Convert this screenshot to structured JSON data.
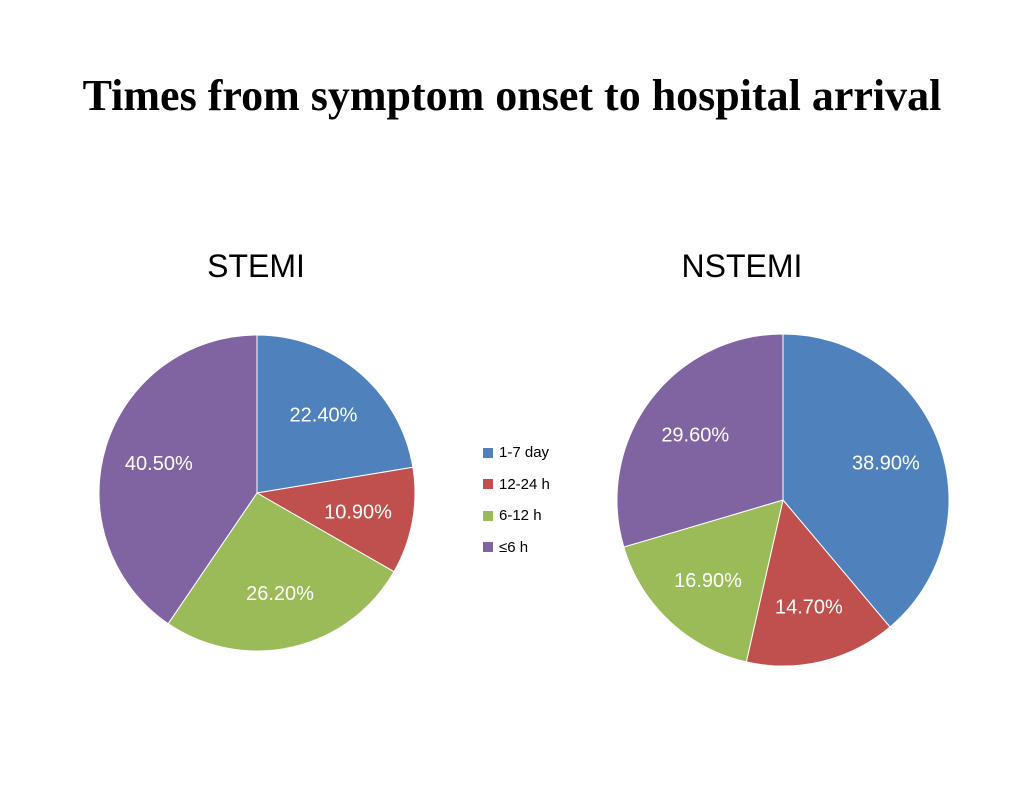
{
  "title": "Times from symptom onset to hospital arrival",
  "colors": {
    "1-7 day": "#4f81bd",
    "12-24 h": "#c0504d",
    "6-12 h": "#9bbb59",
    "≤6 h": "#8064a2"
  },
  "legend": [
    "1-7 day",
    "12-24 h",
    "6-12 h",
    "≤6 h"
  ],
  "chart_data": [
    {
      "type": "pie",
      "title": "STEMI",
      "categories": [
        "1-7 day",
        "12-24 h",
        "6-12 h",
        "≤6 h"
      ],
      "values": [
        22.4,
        10.9,
        26.2,
        40.5
      ],
      "labels": [
        "22.40%",
        "10.90%",
        "26.20%",
        "40.50%"
      ],
      "legend_position": "right"
    },
    {
      "type": "pie",
      "title": "NSTEMI",
      "categories": [
        "1-7 day",
        "12-24 h",
        "6-12 h",
        "≤6 h"
      ],
      "values": [
        38.9,
        14.7,
        16.9,
        29.6
      ],
      "labels": [
        "38.90%",
        "14.70%",
        "16.90%",
        "29.60%"
      ],
      "legend_position": "left"
    }
  ]
}
